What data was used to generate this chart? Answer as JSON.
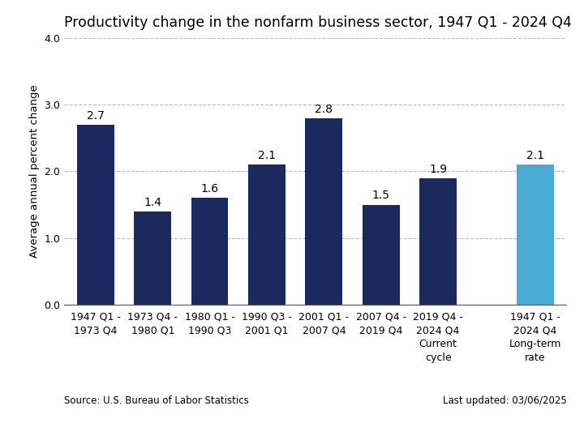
{
  "title": "Productivity change in the nonfarm business sector, 1947 Q1 - 2024 Q4",
  "ylabel": "Average annual percent change",
  "categories": [
    "1947 Q1 -\n1973 Q4",
    "1973 Q4 -\n1980 Q1",
    "1980 Q1 -\n1990 Q3",
    "1990 Q3 -\n2001 Q1",
    "2001 Q1 -\n2007 Q4",
    "2007 Q4 -\n2019 Q4",
    "2019 Q4 -\n2024 Q4\nCurrent\ncycle",
    "1947 Q1 -\n2024 Q4\nLong-term\nrate"
  ],
  "values": [
    2.7,
    1.4,
    1.6,
    2.1,
    2.8,
    1.5,
    1.9,
    2.1
  ],
  "bar_colors": [
    "#1b2a5e",
    "#1b2a5e",
    "#1b2a5e",
    "#1b2a5e",
    "#1b2a5e",
    "#1b2a5e",
    "#1b2a5e",
    "#4aabd6"
  ],
  "ylim": [
    0,
    4.0
  ],
  "yticks": [
    0.0,
    1.0,
    2.0,
    3.0,
    4.0
  ],
  "grid_color": "#bbbbbb",
  "background_color": "#ffffff",
  "source_text": "Source: U.S. Bureau of Labor Statistics",
  "updated_text": "Last updated: 03/06/2025",
  "title_fontsize": 12.5,
  "label_fontsize": 9.5,
  "tick_fontsize": 9,
  "bar_label_fontsize": 10,
  "positions": [
    0,
    1,
    2,
    3,
    4,
    5,
    6,
    7.7
  ]
}
